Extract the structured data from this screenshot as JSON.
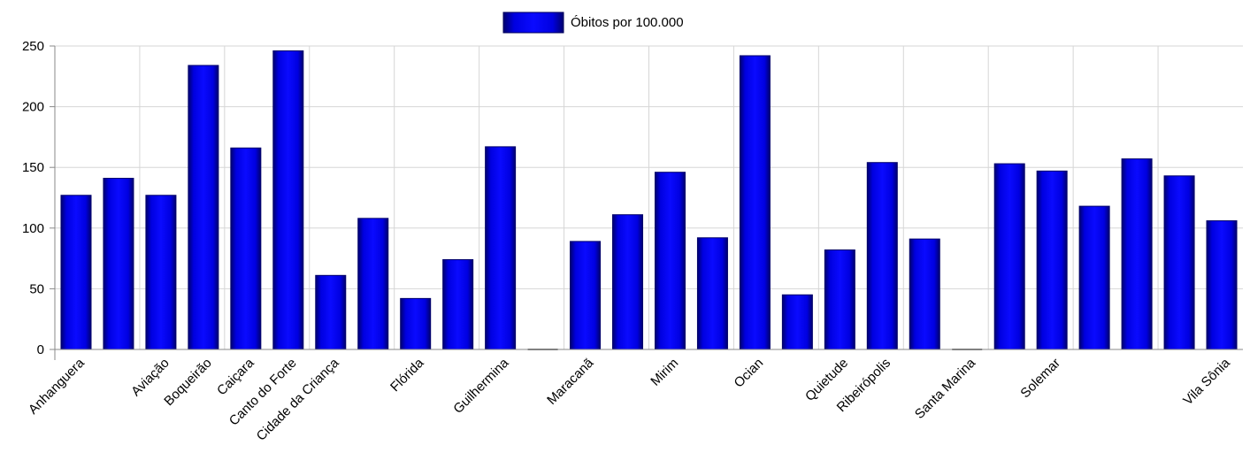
{
  "chart_data": {
    "type": "bar",
    "series": [
      {
        "name": "Óbitos por 100.000",
        "values": [
          127,
          141,
          127,
          234,
          166,
          246,
          61,
          108,
          42,
          74,
          167,
          0,
          89,
          111,
          146,
          92,
          242,
          45,
          82,
          154,
          91,
          0,
          153,
          147,
          118,
          157,
          143,
          106
        ]
      }
    ],
    "categories": [
      "Anhanguera",
      "",
      "Aviação",
      "Boqueirão",
      "Caiçara",
      "Canto do Forte",
      "Cidade da Criança",
      "",
      "Flórida",
      "",
      "Guilhermina",
      "",
      "Maracanã",
      "",
      "Mirim",
      "",
      "Ocian",
      "",
      "Quietude",
      "Ribeirópolis",
      "",
      "Santa Marina",
      "",
      "Solemar",
      "",
      "",
      "",
      "Vila Sônia"
    ],
    "y_ticks": [
      "0",
      "50",
      "100",
      "150",
      "200",
      "250"
    ],
    "ylim": [
      0,
      250
    ],
    "grid": true,
    "legend_position": "top-center",
    "colors": {
      "bar": "#0000ee",
      "bar_edge": "#00006a"
    }
  }
}
